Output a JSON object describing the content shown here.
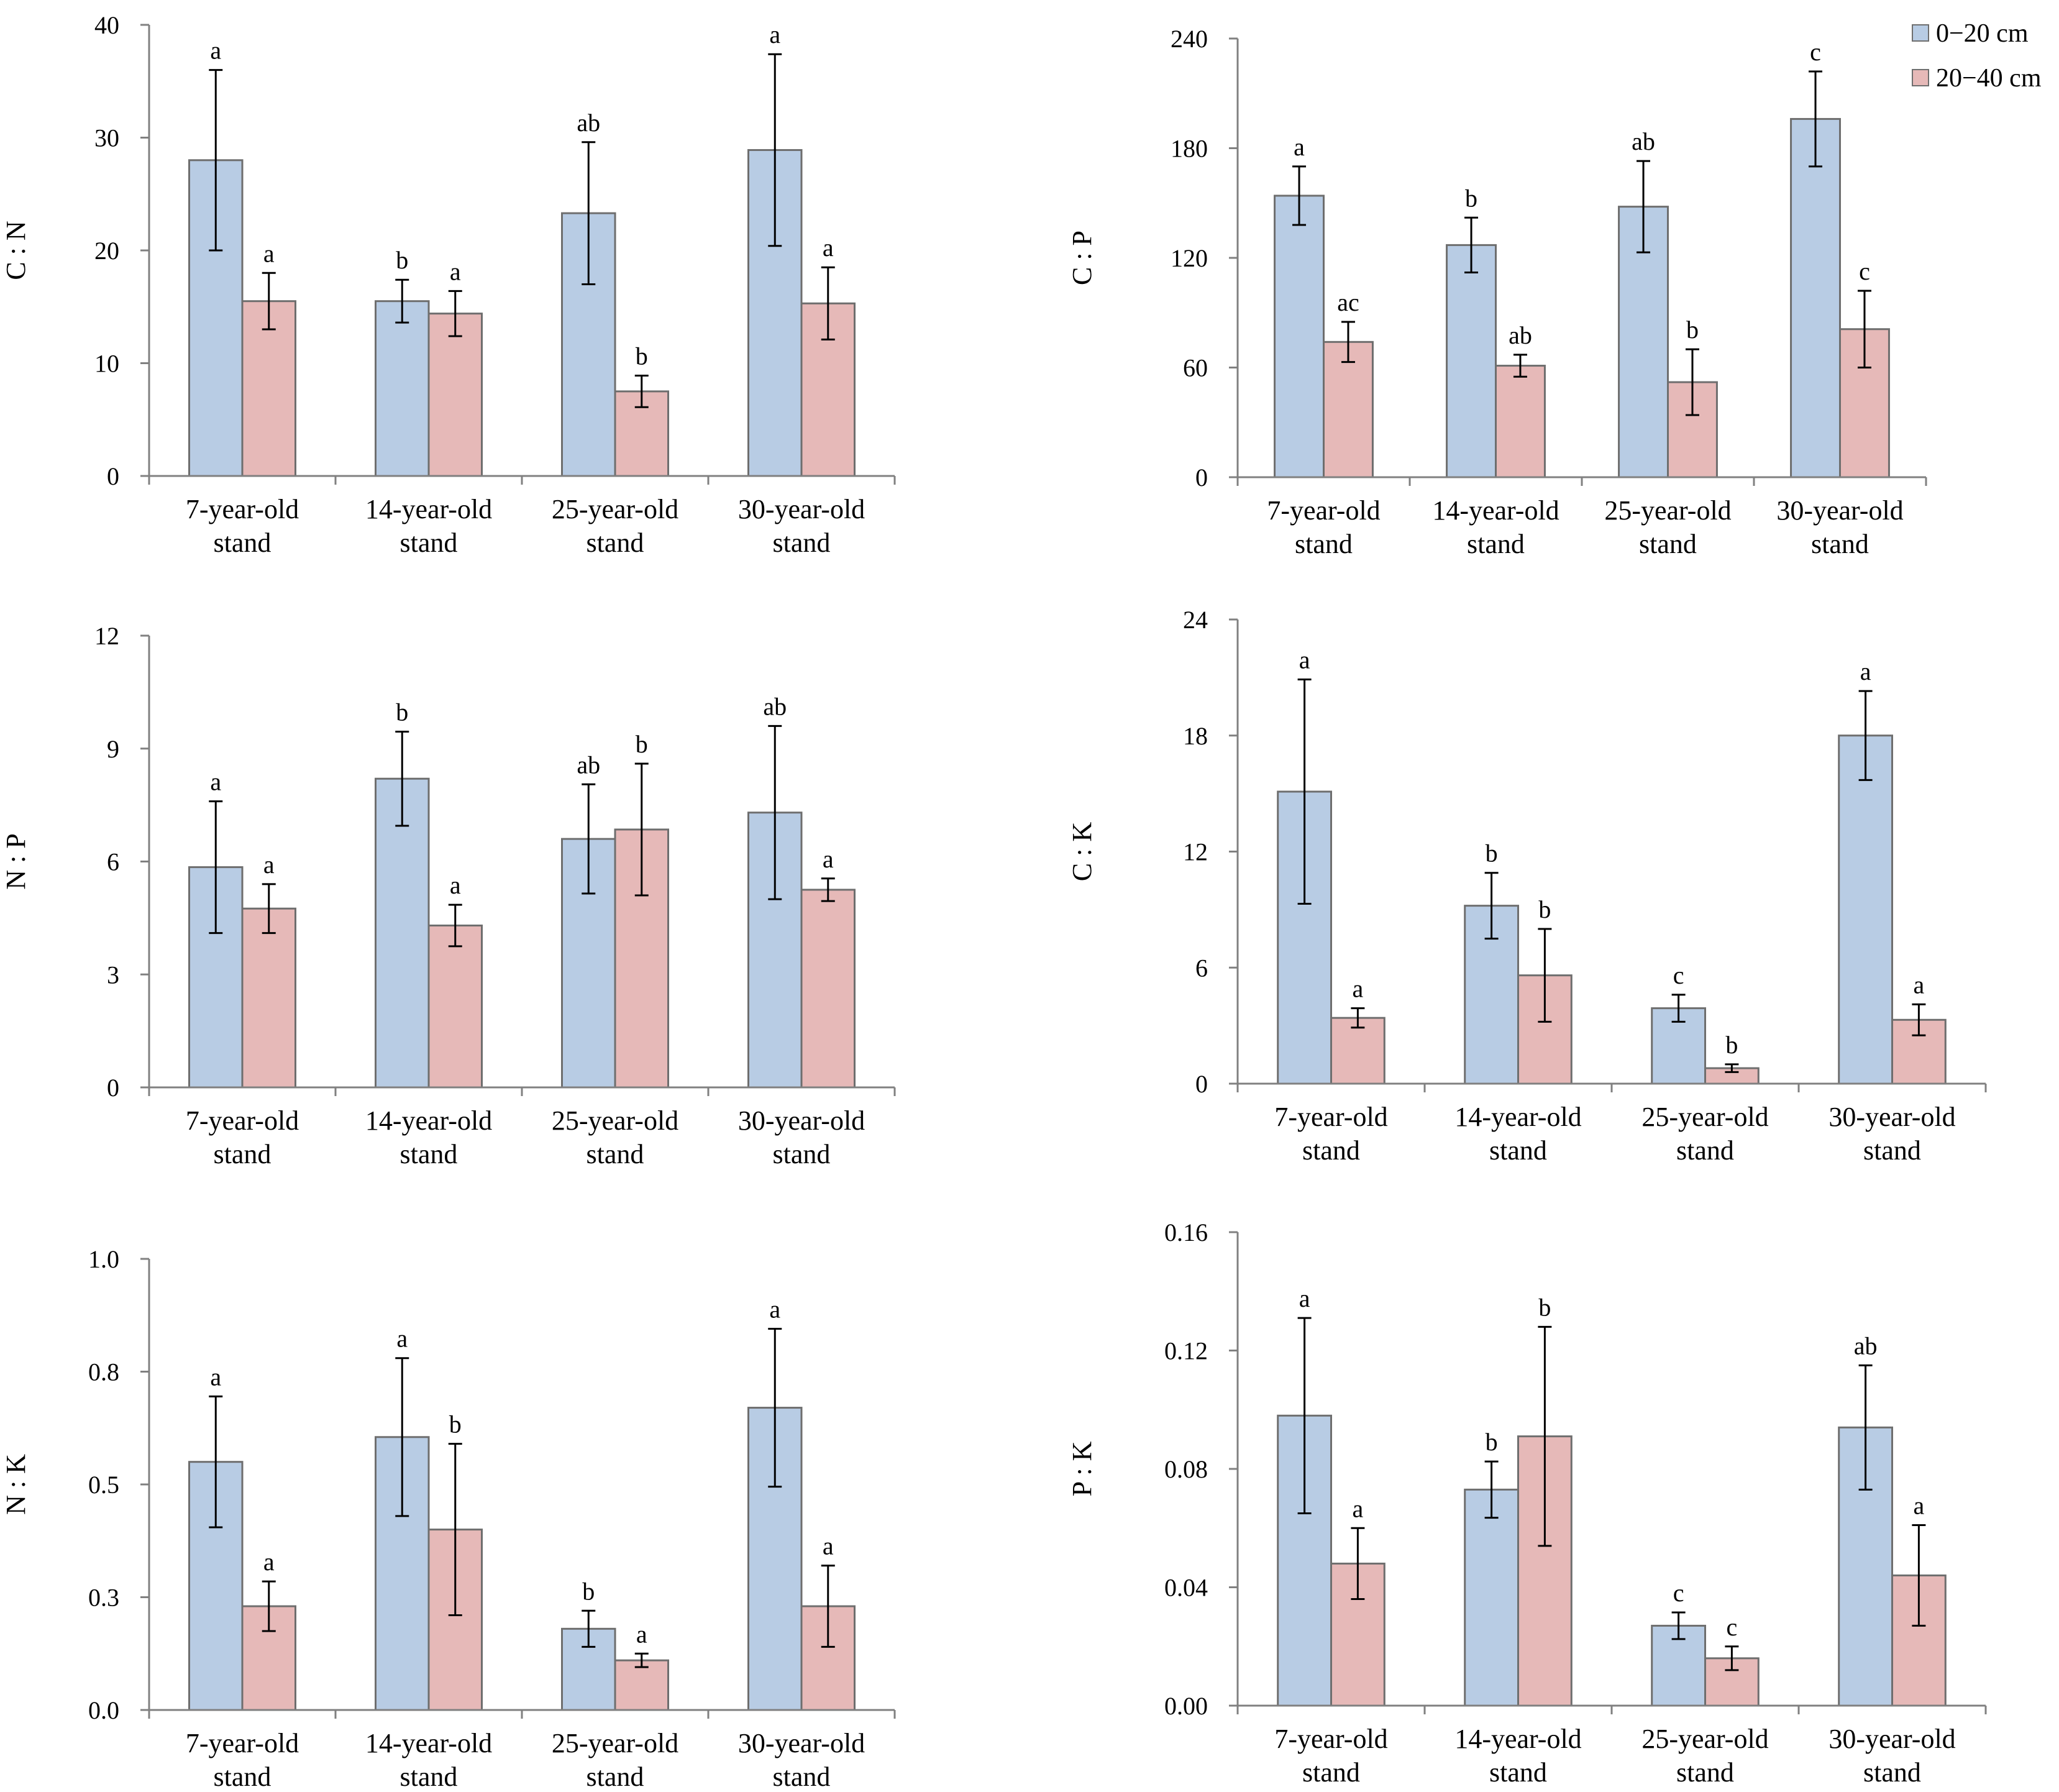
{
  "colors": {
    "series_0_20": "#b8cce4",
    "series_20_40": "#e6b9b8",
    "edge": "#6e6e6e",
    "axis": "#808080",
    "error_bar": "#000000"
  },
  "legend": {
    "items": [
      {
        "label": "0−20 cm",
        "color": "#b8cce4"
      },
      {
        "label": "20−40 cm",
        "color": "#e6b9b8"
      }
    ]
  },
  "chart_data": [
    {
      "type": "bar",
      "panel": "top-left",
      "ylabel": "C : N",
      "ylim": [
        0,
        40
      ],
      "yticks": [
        "0",
        "10",
        "20",
        "30",
        "40"
      ],
      "categories": [
        [
          "7-year-old",
          "stand"
        ],
        [
          "14-year-old",
          "stand"
        ],
        [
          "25-year-old",
          "stand"
        ],
        [
          "30-year-old",
          "stand"
        ]
      ],
      "series": [
        {
          "name": "0−20 cm",
          "values": [
            28,
            15.5,
            23.3,
            28.9
          ],
          "errors": [
            8,
            1.9,
            6.3,
            8.5
          ],
          "letters": [
            "a",
            "b",
            "ab",
            "a"
          ]
        },
        {
          "name": "20−40 cm",
          "values": [
            15.5,
            14.4,
            7.5,
            15.3
          ],
          "errors": [
            2.5,
            2.0,
            1.4,
            3.2
          ],
          "letters": [
            "a",
            "a",
            "b",
            "a"
          ]
        }
      ]
    },
    {
      "type": "bar",
      "panel": "top-right",
      "ylabel": "C : P",
      "ylim": [
        0,
        240
      ],
      "yticks": [
        "0",
        "60",
        "120",
        "180",
        "240"
      ],
      "categories": [
        [
          "7-year-old",
          "stand"
        ],
        [
          "14-year-old",
          "stand"
        ],
        [
          "25-year-old",
          "stand"
        ],
        [
          "30-year-old",
          "stand"
        ]
      ],
      "series": [
        {
          "name": "0−20 cm",
          "values": [
            154,
            127,
            148,
            196
          ],
          "errors": [
            16,
            15,
            25,
            26
          ],
          "letters": [
            "a",
            "b",
            "ab",
            "c"
          ]
        },
        {
          "name": "20−40 cm",
          "values": [
            74,
            61,
            52,
            81
          ],
          "errors": [
            11,
            6,
            18,
            21
          ],
          "letters": [
            "ac",
            "ab",
            "b",
            "c"
          ]
        }
      ]
    },
    {
      "type": "bar",
      "panel": "middle-left",
      "ylabel": "N : P",
      "ylim": [
        0,
        12
      ],
      "yticks": [
        "0",
        "3",
        "6",
        "9",
        "12"
      ],
      "categories": [
        [
          "7-year-old",
          "stand"
        ],
        [
          "14-year-old",
          "stand"
        ],
        [
          "25-year-old",
          "stand"
        ],
        [
          "30-year-old",
          "stand"
        ]
      ],
      "series": [
        {
          "name": "0−20 cm",
          "values": [
            5.85,
            8.2,
            6.6,
            7.3
          ],
          "errors": [
            1.75,
            1.25,
            1.45,
            2.3
          ],
          "letters": [
            "a",
            "b",
            "ab",
            "ab"
          ]
        },
        {
          "name": "20−40 cm",
          "values": [
            4.75,
            4.3,
            6.85,
            5.25
          ],
          "errors": [
            0.65,
            0.55,
            1.75,
            0.3
          ],
          "letters": [
            "a",
            "a",
            "b",
            "a"
          ]
        }
      ]
    },
    {
      "type": "bar",
      "panel": "middle-right",
      "ylabel": "C : K",
      "ylim": [
        0,
        24
      ],
      "yticks": [
        "0",
        "6",
        "12",
        "18",
        "24"
      ],
      "categories": [
        [
          "7-year-old",
          "stand"
        ],
        [
          "14-year-old",
          "stand"
        ],
        [
          "25-year-old",
          "stand"
        ],
        [
          "30-year-old",
          "stand"
        ]
      ],
      "series": [
        {
          "name": "0−20 cm",
          "values": [
            15.1,
            9.2,
            3.9,
            18.0
          ],
          "errors": [
            5.8,
            1.7,
            0.7,
            2.3
          ],
          "letters": [
            "a",
            "b",
            "c",
            "a"
          ]
        },
        {
          "name": "20−40 cm",
          "values": [
            3.4,
            5.6,
            0.8,
            3.3
          ],
          "errors": [
            0.5,
            2.4,
            0.2,
            0.8
          ],
          "letters": [
            "a",
            "b",
            "b",
            "a"
          ]
        }
      ]
    },
    {
      "type": "bar",
      "panel": "bottom-left",
      "ylabel": "N : K",
      "ylim": [
        0,
        1.0
      ],
      "yticks": [
        "0.0",
        "0.3",
        "0.5",
        "0.8",
        "1.0"
      ],
      "categories": [
        [
          "7-year-old",
          "stand"
        ],
        [
          "14-year-old",
          "stand"
        ],
        [
          "25-year-old",
          "stand"
        ],
        [
          "30-year-old",
          "stand"
        ]
      ],
      "series": [
        {
          "name": "0−20 cm",
          "values": [
            0.55,
            0.605,
            0.18,
            0.67
          ],
          "errors": [
            0.145,
            0.175,
            0.04,
            0.175
          ],
          "letters": [
            "a",
            "a",
            "b",
            "a"
          ]
        },
        {
          "name": "20−40 cm",
          "values": [
            0.23,
            0.4,
            0.11,
            0.23
          ],
          "errors": [
            0.055,
            0.19,
            0.015,
            0.09
          ],
          "letters": [
            "a",
            "b",
            "a",
            "a"
          ]
        }
      ]
    },
    {
      "type": "bar",
      "panel": "bottom-right",
      "ylabel": "P : K",
      "ylim": [
        0,
        0.16
      ],
      "yticks": [
        "0.00",
        "0.04",
        "0.08",
        "0.12",
        "0.16"
      ],
      "categories": [
        [
          "7-year-old",
          "stand"
        ],
        [
          "14-year-old",
          "stand"
        ],
        [
          "25-year-old",
          "stand"
        ],
        [
          "30-year-old",
          "stand"
        ]
      ],
      "series": [
        {
          "name": "0−20 cm",
          "values": [
            0.098,
            0.073,
            0.027,
            0.094
          ],
          "errors": [
            0.033,
            0.0095,
            0.0045,
            0.021
          ],
          "letters": [
            "a",
            "b",
            "c",
            "ab"
          ]
        },
        {
          "name": "20−40 cm",
          "values": [
            0.048,
            0.091,
            0.016,
            0.044
          ],
          "errors": [
            0.012,
            0.037,
            0.004,
            0.017
          ],
          "letters": [
            "a",
            "b",
            "c",
            "a"
          ]
        }
      ]
    }
  ]
}
